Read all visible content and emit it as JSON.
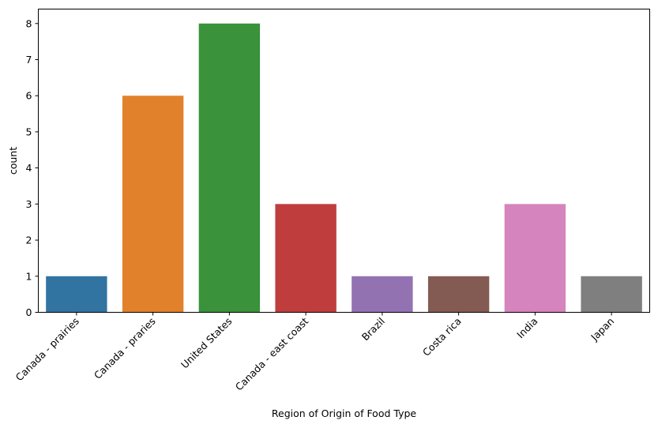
{
  "chart_data": {
    "type": "bar",
    "xlabel": "Region of Origin of Food Type",
    "ylabel": "count",
    "categories": [
      "Canada - prairies",
      "Canada - praries",
      "United States",
      "Canada - east coast",
      "Brazil",
      "Costa rica",
      "India",
      "Japan"
    ],
    "values": [
      1,
      6,
      8,
      3,
      1,
      1,
      3,
      1
    ],
    "colors": [
      "#3274a1",
      "#e1812c",
      "#3a923a",
      "#c03d3e",
      "#9372b2",
      "#845b53",
      "#d684bd",
      "#7f7f7f"
    ],
    "ylim": [
      0,
      8.4
    ],
    "yticks": [
      0,
      1,
      2,
      3,
      4,
      5,
      6,
      7,
      8
    ],
    "grid": false,
    "legend": "none"
  }
}
